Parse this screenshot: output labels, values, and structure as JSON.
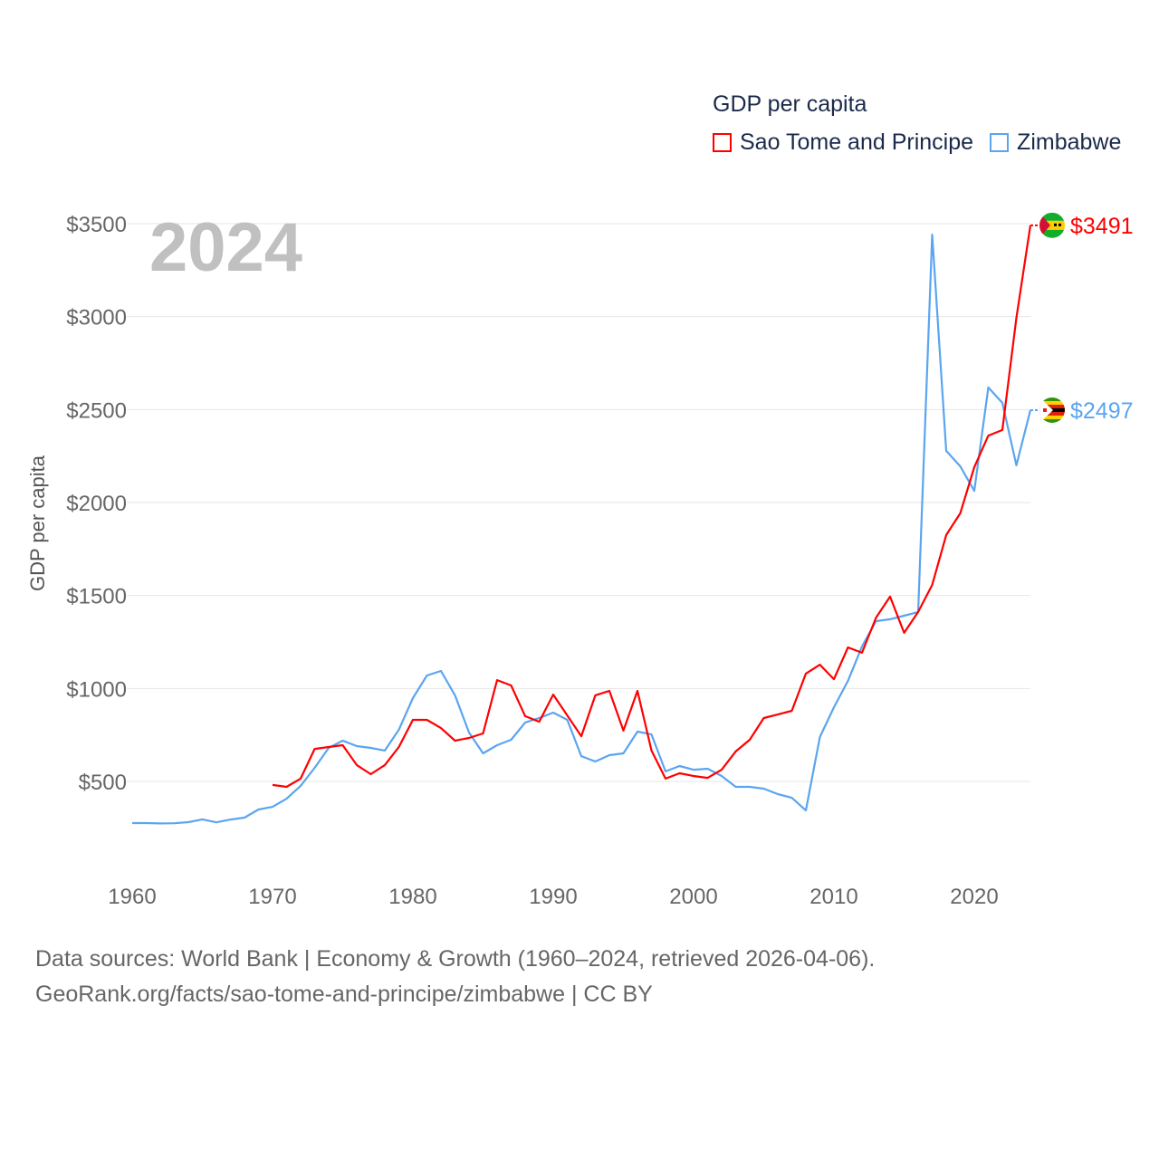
{
  "chart_data": {
    "type": "line",
    "title": "GDP per capita",
    "year_label": "2024",
    "ylabel": "GDP per capita",
    "xlabel": "",
    "xlim": [
      1960,
      2024
    ],
    "ylim": [
      100,
      3600
    ],
    "x_ticks": [
      "1960",
      "1970",
      "1980",
      "1990",
      "2000",
      "2010",
      "2020"
    ],
    "x_tick_values": [
      1960,
      1970,
      1980,
      1990,
      2000,
      2010,
      2020
    ],
    "y_ticks": [
      "$500",
      "$1000",
      "$1500",
      "$2000",
      "$2500",
      "$3000",
      "$3500"
    ],
    "y_tick_values": [
      500,
      1000,
      1500,
      2000,
      2500,
      3000,
      3500
    ],
    "grid": true,
    "legend_position": "top-right",
    "series": [
      {
        "name": "Sao Tome and Principe",
        "color": "#ff0000",
        "end_label": "$3491",
        "start_year": 1970,
        "values": [
          481,
          471,
          515,
          675,
          685,
          695,
          588,
          539,
          588,
          685,
          831,
          831,
          787,
          719,
          734,
          758,
          1045,
          1016,
          851,
          821,
          967,
          855,
          743,
          963,
          987,
          773,
          987,
          666,
          515,
          544,
          529,
          519,
          563,
          661,
          724,
          841,
          860,
          880,
          1080,
          1128,
          1050,
          1221,
          1192,
          1381,
          1494,
          1299,
          1411,
          1557,
          1825,
          1942,
          2190,
          2360,
          2390,
          2993,
          3491
        ]
      },
      {
        "name": "Zimbabwe",
        "color": "#5aa5f0",
        "end_label": "$2497",
        "start_year": 1960,
        "values": [
          276,
          276,
          274,
          275,
          281,
          296,
          280,
          295,
          305,
          349,
          363,
          407,
          476,
          573,
          680,
          719,
          690,
          680,
          666,
          778,
          948,
          1070,
          1094,
          963,
          763,
          651,
          695,
          724,
          817,
          841,
          870,
          831,
          636,
          607,
          641,
          651,
          768,
          753,
          554,
          583,
          563,
          568,
          529,
          471,
          471,
          461,
          432,
          412,
          344,
          739,
          899,
          1041,
          1226,
          1362,
          1372,
          1391,
          1411,
          3441,
          2278,
          2195,
          2063,
          2619,
          2536,
          2200,
          2497
        ]
      }
    ]
  },
  "footer": {
    "line1": "Data sources: World Bank | Economy & Growth (1960–2024, retrieved 2026-04-06).",
    "line2": "GeoRank.org/facts/sao-tome-and-principe/zimbabwe | CC BY"
  }
}
